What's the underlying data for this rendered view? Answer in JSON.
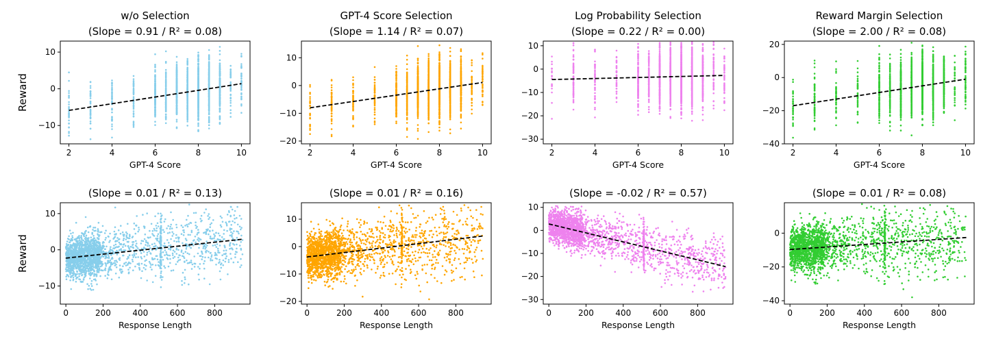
{
  "figure": {
    "row_ylabel": "Reward",
    "colors": {
      "blue": "#87ceeb",
      "orange": "#ffa500",
      "violet": "#ee82ee",
      "green": "#32cd32"
    }
  },
  "chart_data": [
    {
      "type": "scatter",
      "title": "w/o Selection",
      "subtitle": "(Slope = 0.91 / R² = 0.08)",
      "xlabel": "GPT-4 Score",
      "ylabel": "Reward",
      "xlim": [
        1.6,
        10.4
      ],
      "ylim": [
        -15,
        13
      ],
      "xticks": [
        2,
        4,
        6,
        8,
        10
      ],
      "yticks": [
        -10,
        0,
        10
      ],
      "color": "#87ceeb",
      "x_kind": "score",
      "trend": {
        "slope": 0.91,
        "intercept": -7.7
      },
      "noise": 3.8,
      "n": 2000
    },
    {
      "type": "scatter",
      "title": "GPT-4 Score Selection",
      "subtitle": "(Slope = 1.14 / R² = 0.07)",
      "xlabel": "GPT-4 Score",
      "ylabel": "",
      "xlim": [
        1.6,
        10.4
      ],
      "ylim": [
        -21,
        16
      ],
      "xticks": [
        2,
        4,
        6,
        8,
        10
      ],
      "yticks": [
        -20,
        -10,
        0,
        10
      ],
      "color": "#ffa500",
      "x_kind": "score",
      "trend": {
        "slope": 1.14,
        "intercept": -10.3
      },
      "noise": 5.0,
      "n": 2000
    },
    {
      "type": "scatter",
      "title": "Log Probability Selection",
      "subtitle": "(Slope = 0.22 / R² = 0.00)",
      "xlabel": "GPT-4 Score",
      "ylabel": "",
      "xlim": [
        1.6,
        10.4
      ],
      "ylim": [
        -32,
        12
      ],
      "xticks": [
        2,
        4,
        6,
        8,
        10
      ],
      "yticks": [
        -30,
        -20,
        -10,
        0,
        10
      ],
      "color": "#ee82ee",
      "x_kind": "score",
      "trend": {
        "slope": 0.22,
        "intercept": -4.9
      },
      "noise": 6.5,
      "n": 2000
    },
    {
      "type": "scatter",
      "title": "Reward Margin Selection",
      "subtitle": "(Slope = 2.00 / R² = 0.08)",
      "xlabel": "GPT-4 Score",
      "ylabel": "",
      "xlim": [
        1.6,
        10.4
      ],
      "ylim": [
        -40,
        22
      ],
      "xticks": [
        2,
        4,
        6,
        8,
        10
      ],
      "yticks": [
        -40,
        -20,
        0,
        20
      ],
      "color": "#32cd32",
      "x_kind": "score",
      "trend": {
        "slope": 2.0,
        "intercept": -21.0
      },
      "noise": 8.5,
      "n": 2000
    },
    {
      "type": "scatter",
      "title": "",
      "subtitle": "(Slope = 0.01 / R² = 0.13)",
      "xlabel": "Response Length",
      "ylabel": "Reward",
      "xlim": [
        -30,
        990
      ],
      "ylim": [
        -15,
        13
      ],
      "xticks": [
        0,
        200,
        400,
        600,
        800
      ],
      "yticks": [
        -10,
        0,
        10
      ],
      "color": "#87ceeb",
      "x_kind": "length",
      "trend": {
        "slope": 0.0055,
        "intercept": -2.3
      },
      "noise": 3.6,
      "n": 2200
    },
    {
      "type": "scatter",
      "title": "",
      "subtitle": "(Slope = 0.01 / R² = 0.16)",
      "xlabel": "Response Length",
      "ylabel": "",
      "xlim": [
        -30,
        990
      ],
      "ylim": [
        -21,
        16
      ],
      "xticks": [
        0,
        200,
        400,
        600,
        800
      ],
      "yticks": [
        -20,
        -10,
        0,
        10
      ],
      "color": "#ffa500",
      "x_kind": "length",
      "trend": {
        "slope": 0.0081,
        "intercept": -3.8
      },
      "noise": 5.0,
      "n": 2200
    },
    {
      "type": "scatter",
      "title": "",
      "subtitle": "(Slope = -0.02 / R² = 0.57)",
      "xlabel": "Response Length",
      "ylabel": "",
      "xlim": [
        -30,
        990
      ],
      "ylim": [
        -32,
        12
      ],
      "xticks": [
        0,
        200,
        400,
        600,
        800
      ],
      "yticks": [
        -30,
        -20,
        -10,
        0,
        10
      ],
      "color": "#ee82ee",
      "x_kind": "length",
      "trend": {
        "slope": -0.0195,
        "intercept": 2.8
      },
      "noise": 4.5,
      "n": 2200
    },
    {
      "type": "scatter",
      "title": "",
      "subtitle": "(Slope = 0.01 / R² = 0.08)",
      "xlabel": "Response Length",
      "ylabel": "",
      "xlim": [
        -30,
        990
      ],
      "ylim": [
        -42,
        18
      ],
      "xticks": [
        0,
        200,
        400,
        600,
        800
      ],
      "yticks": [
        -40,
        -20,
        0
      ],
      "color": "#32cd32",
      "x_kind": "length",
      "trend": {
        "slope": 0.0075,
        "intercept": -9.7
      },
      "noise": 8.0,
      "n": 2200
    }
  ]
}
